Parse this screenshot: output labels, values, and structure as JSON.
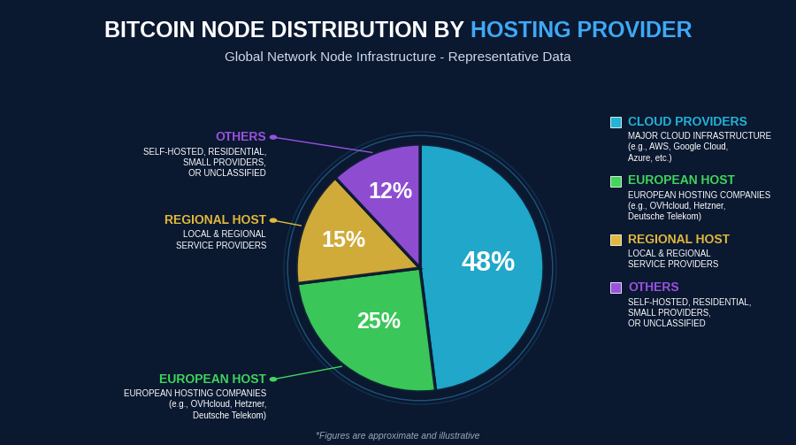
{
  "chart_data": {
    "type": "pie",
    "title": "BITCOIN NODE DISTRIBUTION BY HOSTING PROVIDER",
    "subtitle": "Global Network Node Infrastructure - Representative Data",
    "note": "*Figures are approximate and illustrative",
    "categories": [
      "CLOUD PROVIDERS",
      "EUROPEAN HOST",
      "REGIONAL HOST",
      "OTHERS"
    ],
    "descriptions": [
      [
        "MAJOR CLOUD INFRASTRUCTURE",
        "(e.g., AWS, Google Cloud,",
        "Azure, etc.)"
      ],
      [
        "EUROPEAN HOSTING COMPANIES",
        "(e.g., OVHcloud, Hetzner,",
        "Deutsche Telekom)"
      ],
      [
        "LOCAL & REGIONAL",
        "SERVICE PROVIDERS"
      ],
      [
        "SELF-HOSTED, RESIDENTIAL,",
        "SMALL PROVIDERS,",
        "OR UNCLASSIFIED"
      ]
    ],
    "values": [
      48,
      25,
      15,
      12
    ],
    "value_labels": [
      "48%",
      "25%",
      "15%",
      "12%"
    ],
    "colors": [
      "#22b4d8",
      "#3fd65c",
      "#e2b93b",
      "#9a52e0"
    ],
    "data_labels": true,
    "legend": "right"
  }
}
